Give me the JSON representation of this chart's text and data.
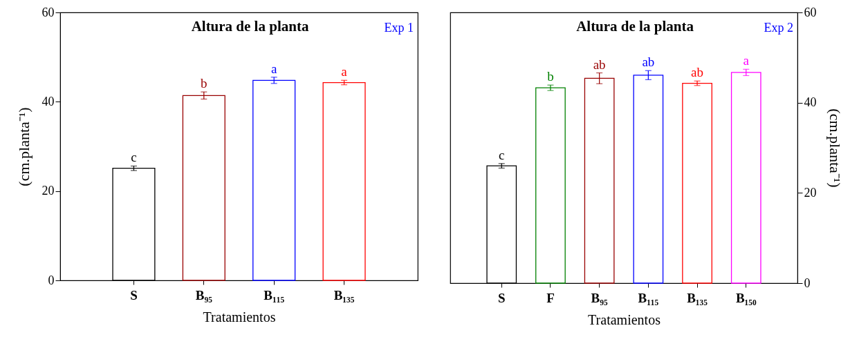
{
  "chart_data": [
    {
      "type": "bar",
      "title": "Altura de la planta",
      "xlabel": "Tratamientos",
      "ylabel": "(cm.planta⁻¹)",
      "categories": [
        "S",
        "B₉₅",
        "B₁₁₅",
        "B₁₃₅"
      ],
      "values": [
        25.1,
        41.4,
        44.8,
        44.3
      ],
      "errors": [
        0.5,
        0.8,
        0.7,
        0.5
      ],
      "colors": [
        "#000000",
        "#990000",
        "#0000ff",
        "#ff0000"
      ],
      "ylim": [
        0,
        60
      ],
      "yticks": [
        0,
        20,
        40,
        60
      ],
      "annotations": [
        {
          "text": "c",
          "x": "S",
          "y": 25.6
        },
        {
          "text": "b",
          "x": "B₉₅",
          "y": 42.2
        },
        {
          "text": "a",
          "x": "B₁₁₅",
          "y": 45.5
        },
        {
          "text": "a",
          "x": "B₁₃₅",
          "y": 44.8
        },
        "Exp 1"
      ]
    },
    {
      "type": "bar",
      "title": "Altura de la planta",
      "xlabel": "Tratamientos",
      "ylabel": "(cm.planta⁻¹)",
      "categories": [
        "S",
        "F",
        "B₉₅",
        "B₁₁₅",
        "B₁₃₅",
        "B₁₅₀"
      ],
      "values": [
        26.0,
        43.3,
        45.4,
        46.1,
        44.3,
        46.7
      ],
      "errors": [
        0.5,
        0.6,
        1.2,
        1.0,
        0.5,
        0.7
      ],
      "colors": [
        "#000000",
        "#008000",
        "#990000",
        "#0000ff",
        "#ff0000",
        "#ff00ff"
      ],
      "ylim": [
        0,
        60
      ],
      "yticks": [
        0,
        20,
        40,
        60
      ],
      "annotations": [
        {
          "text": "c",
          "x": "S",
          "y": 26.5
        },
        {
          "text": "b",
          "x": "F",
          "y": 43.9
        },
        {
          "text": "ab",
          "x": "B₉₅",
          "y": 46.6
        },
        {
          "text": "ab",
          "x": "B₁₁₅",
          "y": 47.1
        },
        {
          "text": "ab",
          "x": "B₁₃₅",
          "y": 44.8
        },
        {
          "text": "a",
          "x": "B₁₅₀",
          "y": 47.4
        },
        "Exp 2"
      ]
    }
  ]
}
